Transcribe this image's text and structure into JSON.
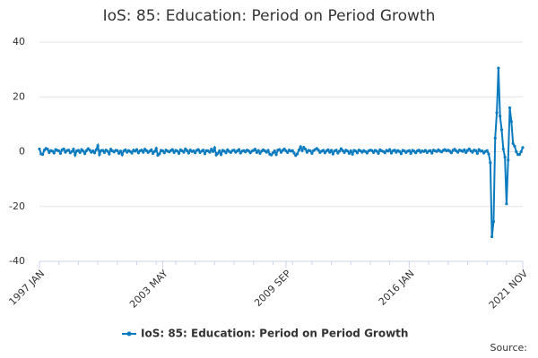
{
  "chart_data": {
    "type": "line",
    "title": "IoS: 85: Education: Period on Period Growth",
    "source": "Source:",
    "categories": [
      "1997 JAN",
      null,
      null,
      null,
      null,
      null,
      null,
      null,
      null,
      null,
      null,
      null,
      null,
      null,
      null,
      null,
      null,
      null,
      null,
      null,
      null,
      null,
      null,
      null,
      null,
      null,
      null,
      null,
      null,
      null,
      null,
      null,
      null,
      null,
      null,
      null,
      null,
      null,
      null,
      null,
      null,
      null,
      null,
      null,
      null,
      null,
      null,
      null,
      null,
      null,
      null,
      null,
      null,
      null,
      null,
      null,
      null,
      null,
      null,
      null,
      null,
      null,
      null,
      null,
      null,
      null,
      null,
      null,
      null,
      null,
      null,
      null,
      null,
      null,
      null,
      null,
      "2003 MAY",
      null,
      null,
      null,
      null,
      null,
      null,
      null,
      null,
      null,
      null,
      null,
      null,
      null,
      null,
      null,
      null,
      null,
      null,
      null,
      null,
      null,
      null,
      null,
      null,
      null,
      null,
      null,
      null,
      null,
      null,
      null,
      null,
      null,
      null,
      null,
      null,
      null,
      null,
      null,
      null,
      null,
      null,
      null,
      null,
      null,
      null,
      null,
      null,
      null,
      null,
      null,
      null,
      null,
      null,
      null,
      null,
      null,
      null,
      null,
      null,
      null,
      null,
      null,
      null,
      null,
      null,
      null,
      null,
      null,
      null,
      null,
      null,
      null,
      null,
      null,
      "2009 SEP",
      null,
      null,
      null,
      null,
      null,
      null,
      null,
      null,
      null,
      null,
      null,
      null,
      null,
      null,
      null,
      null,
      null,
      null,
      null,
      null,
      null,
      null,
      null,
      null,
      null,
      null,
      null,
      null,
      null,
      null,
      null,
      null,
      null,
      null,
      null,
      null,
      null,
      null,
      null,
      null,
      null,
      null,
      null,
      null,
      null,
      null,
      null,
      null,
      null,
      null,
      null,
      null,
      null,
      null,
      null,
      null,
      null,
      null,
      null,
      null,
      null,
      null,
      null,
      null,
      null,
      null,
      null,
      null,
      null,
      null,
      null,
      null,
      null,
      null,
      null,
      "2016 JAN",
      null,
      null,
      null,
      null,
      null,
      null,
      null,
      null,
      null,
      null,
      null,
      null,
      null,
      null,
      null,
      null,
      null,
      null,
      null,
      null,
      null,
      null,
      null,
      null,
      null,
      null,
      null,
      null,
      null,
      null,
      null,
      null,
      null,
      null,
      null,
      null,
      null,
      null,
      null,
      null,
      null,
      null,
      null,
      null,
      null,
      null,
      null,
      null,
      null,
      null,
      null,
      null,
      null,
      null,
      null,
      null,
      null,
      null,
      null,
      null,
      null,
      null,
      null,
      null,
      null,
      null,
      null,
      null,
      null,
      "2021 NOV"
    ],
    "series": [
      {
        "name": "IoS: 85: Education: Period on Period Growth",
        "color": "#0b7bbf",
        "values": [
          1.0,
          -0.8,
          -1.0,
          0.6,
          1.2,
          0.9,
          -0.3,
          0.4,
          0.2,
          -0.5,
          0.8,
          0.5,
          0.3,
          -0.6,
          0.7,
          1.0,
          -0.2,
          0.4,
          0.6,
          -0.4,
          0.1,
          0.9,
          -1.2,
          0.3,
          0.5,
          -0.3,
          0.8,
          0.2,
          -0.7,
          0.4,
          1.1,
          0.6,
          -0.2,
          0.3,
          -0.4,
          0.7,
          2.2,
          -1.0,
          0.4,
          0.5,
          -0.3,
          0.6,
          0.2,
          -0.8,
          0.9,
          0.3,
          -0.1,
          0.5,
          0.4,
          -0.6,
          0.2,
          -1.1,
          0.3,
          0.7,
          -0.2,
          0.4,
          0.1,
          -0.5,
          0.6,
          0.2,
          0.8,
          -0.4,
          0.3,
          0.6,
          -0.2,
          0.9,
          0.4,
          -0.3,
          0.2,
          0.7,
          -0.6,
          0.1,
          1.2,
          -1.3,
          -0.8,
          0.5,
          0.3,
          -0.4,
          0.6,
          0.2,
          -0.1,
          0.4,
          0.8,
          -0.3,
          0.5,
          0.2,
          -0.6,
          0.7,
          0.3,
          -0.2,
          1.0,
          0.4,
          -0.5,
          0.6,
          0.1,
          0.3,
          -0.4,
          0.5,
          0.8,
          -0.3,
          0.2,
          0.6,
          -0.7,
          0.4,
          0.3,
          -0.2,
          0.9,
          0.1,
          1.4,
          -1.2,
          -0.6,
          0.3,
          -1.0,
          0.5,
          0.2,
          -0.4,
          0.7,
          0.1,
          -0.3,
          0.4,
          0.6,
          -0.2,
          0.3,
          0.8,
          -0.5,
          0.2,
          0.4,
          -0.1,
          0.6,
          0.3,
          -0.4,
          0.2,
          0.5,
          0.9,
          -0.3,
          0.4,
          -0.6,
          0.2,
          0.7,
          0.3,
          -0.2,
          0.5,
          -0.9,
          -1.2,
          -0.4,
          0.3,
          -1.0,
          0.6,
          0.8,
          -0.2,
          0.5,
          1.0,
          0.3,
          -0.3,
          0.6,
          0.2,
          0.4,
          -0.5,
          -1.4,
          -0.8,
          0.6,
          1.8,
          0.4,
          1.6,
          0.9,
          -0.2,
          0.5,
          0.3,
          -0.6,
          0.4,
          0.8,
          1.2,
          0.6,
          -0.3,
          0.2,
          0.5,
          -0.4,
          0.3,
          0.7,
          -0.2,
          0.5,
          -0.8,
          0.3,
          0.6,
          -0.5,
          0.2,
          1.1,
          0.4,
          -0.3,
          0.6,
          0.2,
          -0.6,
          0.3,
          -0.9,
          0.5,
          0.2,
          -0.4,
          0.6,
          0.3,
          -0.2,
          0.4,
          0.1,
          -0.5,
          0.3,
          0.6,
          0.4,
          -0.3,
          0.5,
          0.2,
          -0.6,
          0.7,
          0.3,
          0.1,
          -0.4,
          0.5,
          0.2,
          0.8,
          -0.5,
          0.3,
          0.6,
          -0.2,
          0.4,
          0.1,
          -0.7,
          0.5,
          0.3,
          -0.3,
          0.2,
          0.4,
          -0.6,
          0.5,
          0.2,
          -0.4,
          0.3,
          0.6,
          -0.2,
          0.3,
          0.1,
          0.5,
          -0.3,
          0.2,
          0.4,
          -0.5,
          0.6,
          0.3,
          0.1,
          0.7,
          0.2,
          -0.1,
          0.5,
          0.8,
          0.3,
          0.6,
          0.2,
          -0.4,
          0.5,
          0.9,
          0.3,
          -0.2,
          0.6,
          0.4,
          0.1,
          0.7,
          -0.3,
          0.5,
          1.0,
          0.3,
          -0.2,
          0.6,
          0.4,
          -0.6,
          0.8,
          0.2,
          0.3,
          -0.5,
          0.1,
          0.4,
          -0.8,
          -4.0,
          -31.0,
          -25.5,
          5.0,
          14.2,
          30.5,
          13.0,
          8.0,
          1.0,
          -2.0,
          -19.0,
          -3.0,
          16.0,
          11.0,
          3.0,
          2.0,
          0.0,
          -1.0,
          -1.0,
          0.0,
          1.5
        ]
      }
    ],
    "ylim": [
      -40,
      40
    ],
    "yticks": [
      -40,
      -20,
      0,
      20,
      40
    ],
    "grid": true,
    "legend": "bottom"
  }
}
